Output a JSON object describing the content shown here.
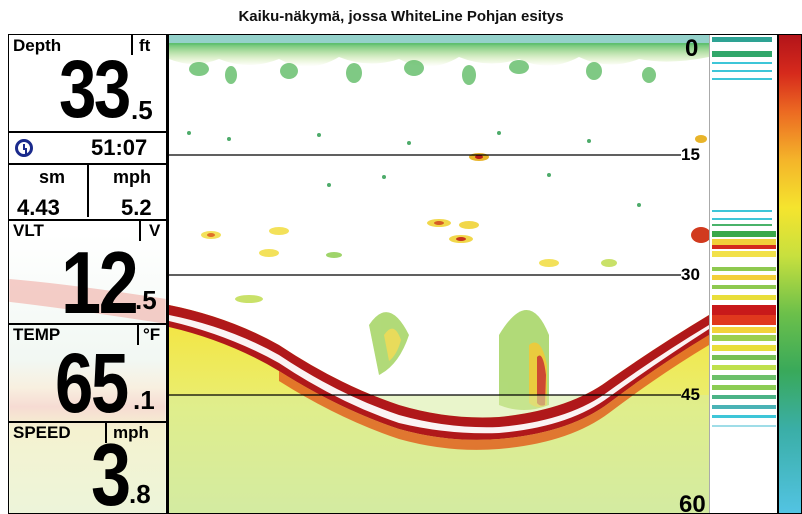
{
  "caption": "Kaiku-näkymä, jossa WhiteLine Pohjan esitys",
  "depth": {
    "label": "Depth",
    "unit": "ft",
    "value": "33",
    "decimal": ".5"
  },
  "time": {
    "value": "51:07",
    "icon": "clock-icon"
  },
  "distance": {
    "unit": "sm",
    "value": "4.43"
  },
  "speed_small": {
    "unit": "mph",
    "value": "5.2"
  },
  "voltage": {
    "label": "VLT",
    "unit": "V",
    "value": "12",
    "decimal": ".5"
  },
  "temperature": {
    "label": "TEMP",
    "unit": "°F",
    "value": "65",
    "decimal": ".1"
  },
  "speed": {
    "label": "SPEED",
    "unit": "mph",
    "value": "3",
    "decimal": ".8"
  },
  "depth_scale": {
    "ticks": [
      "0",
      "15",
      "30",
      "45",
      "60"
    ],
    "max": 60
  },
  "colors": {
    "bottom_red": "#b0181a",
    "whiteline": "#ffffff",
    "yellow": "#f4e21c",
    "green": "#3fae49",
    "cyan": "#3ec6d8"
  }
}
